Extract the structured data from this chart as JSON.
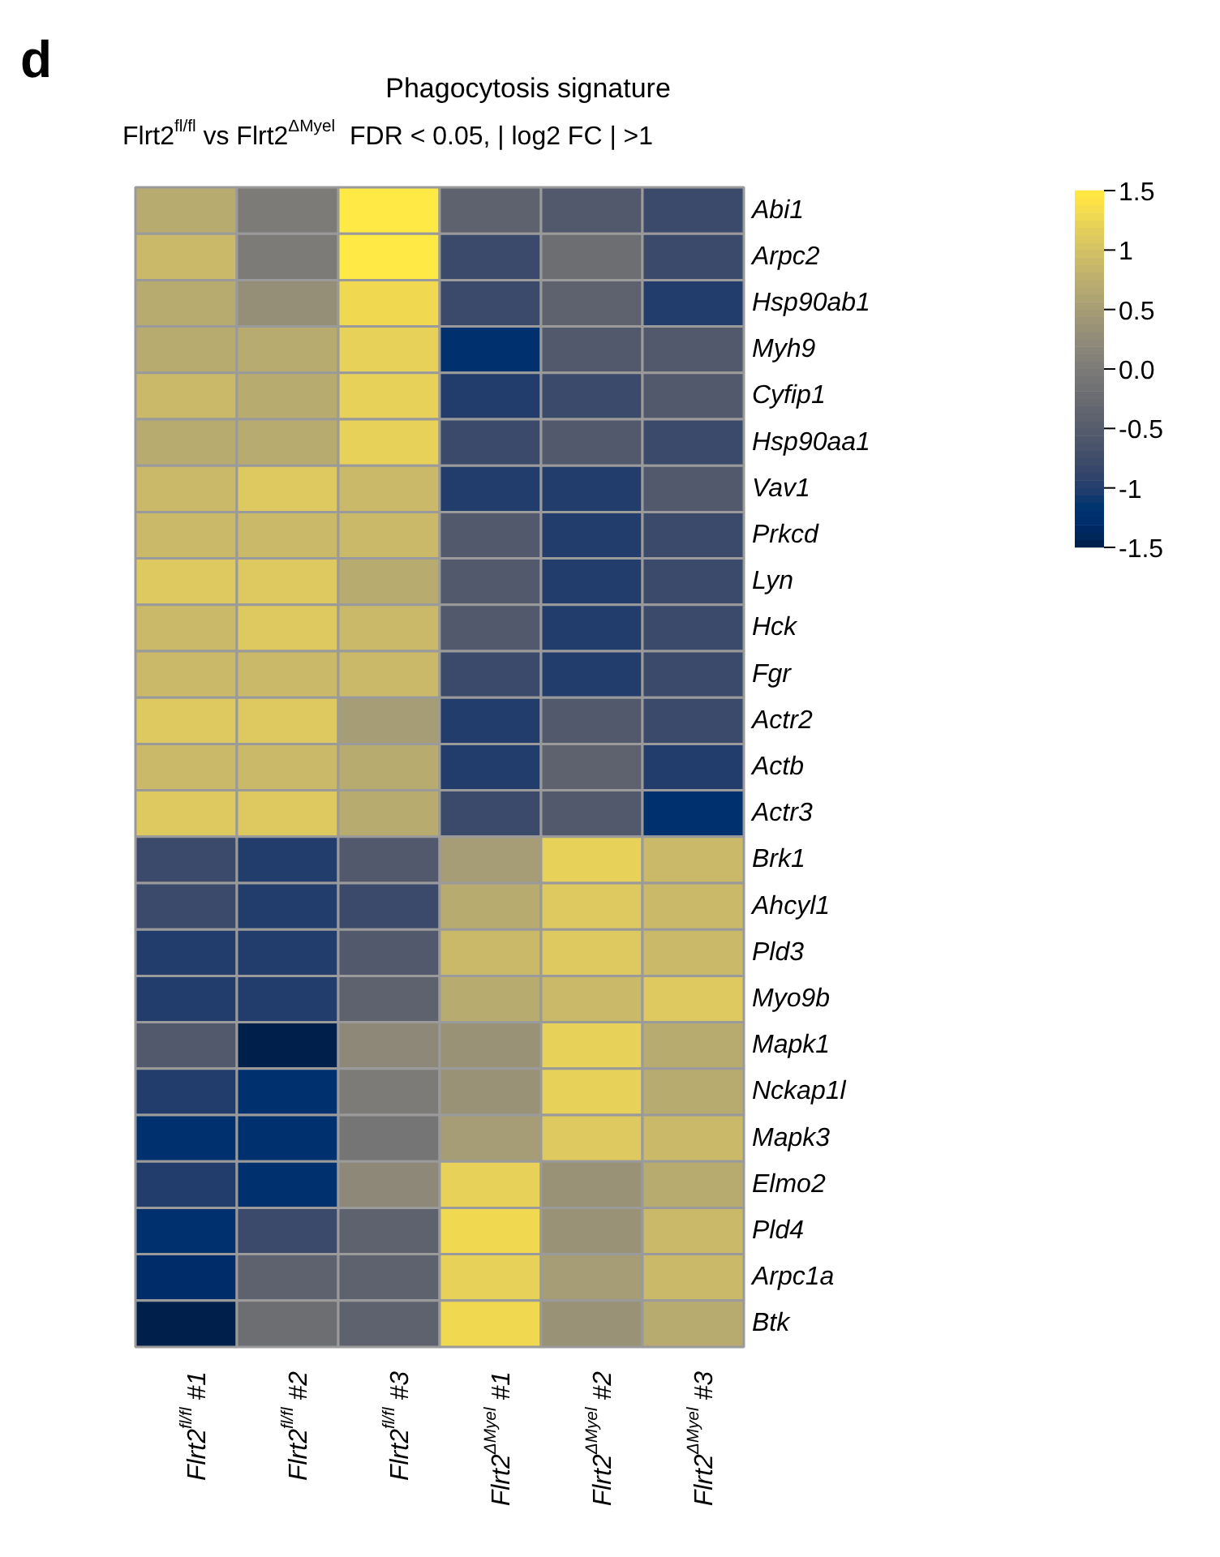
{
  "chart_data": {
    "type": "heatmap",
    "title": "Phagocytosis signature",
    "subtitle": "Flrt2$^{fl/fl}$ vs Flrt2$^{ΔMyel}$  FDR < 0.05, | log2 FC | >1",
    "annotations": [
      "d"
    ],
    "categories": [
      "Flrt2$^{fl/fl}$ #1",
      "Flrt2$^{fl/fl}$ #2",
      "Flrt2$^{fl/fl}$ #3",
      "Flrt2$^{ΔMyel}$ #1",
      "Flrt2$^{ΔMyel}$ #2",
      "Flrt2$^{ΔMyel}$ #3"
    ],
    "y_categories": [
      "Abi1",
      "Arpc2",
      "Hsp90ab1",
      "Myh9",
      "Cyfip1",
      "Hsp90aa1",
      "Vav1",
      "Prkcd",
      "Lyn",
      "Hck",
      "Fgr",
      "Actr2",
      "Actb",
      "Actr3",
      "Brk1",
      "Ahcyl1",
      "Pld3",
      "Myo9b",
      "Mapk1",
      "Nckap1l",
      "Mapk3",
      "Elmo2",
      "Pld4",
      "Arpc1a",
      "Btk"
    ],
    "cells": [
      [
        0.7,
        0,
        1.5,
        -0.4,
        -0.55,
        -0.8
      ],
      [
        0.9,
        0,
        1.5,
        -0.8,
        -0.2,
        -0.8
      ],
      [
        0.7,
        0.3,
        1.3,
        -0.8,
        -0.4,
        -1.0
      ],
      [
        0.7,
        0.7,
        1.2,
        -1.2,
        -0.55,
        -0.55
      ],
      [
        0.9,
        0.7,
        1.2,
        -1.0,
        -0.8,
        -0.55
      ],
      [
        0.7,
        0.7,
        1.2,
        -0.8,
        -0.55,
        -0.8
      ],
      [
        0.9,
        1.1,
        0.9,
        -1.0,
        -1.0,
        -0.55
      ],
      [
        0.9,
        0.9,
        0.9,
        -0.55,
        -1.0,
        -0.8
      ],
      [
        1.1,
        1.1,
        0.7,
        -0.55,
        -1.0,
        -0.8
      ],
      [
        0.9,
        1.1,
        0.9,
        -0.55,
        -1.0,
        -0.8
      ],
      [
        0.9,
        0.9,
        0.9,
        -0.8,
        -1.0,
        -0.8
      ],
      [
        1.1,
        1.1,
        0.5,
        -1.0,
        -0.55,
        -0.8
      ],
      [
        0.9,
        0.9,
        0.7,
        -1.0,
        -0.4,
        -1.0
      ],
      [
        1.1,
        1.1,
        0.7,
        -0.8,
        -0.55,
        -1.2
      ],
      [
        -0.8,
        -1.0,
        -0.55,
        0.5,
        1.2,
        0.9
      ],
      [
        -0.8,
        -1.0,
        -0.8,
        0.7,
        1.1,
        0.9
      ],
      [
        -1.0,
        -1.0,
        -0.55,
        0.9,
        1.1,
        0.9
      ],
      [
        -1.0,
        -1.0,
        -0.4,
        0.7,
        0.9,
        1.1
      ],
      [
        -0.55,
        -1.5,
        0.2,
        0.35,
        1.2,
        0.7
      ],
      [
        -1.0,
        -1.2,
        0,
        0.35,
        1.2,
        0.7
      ],
      [
        -1.2,
        -1.2,
        -0.1,
        0.5,
        1.1,
        0.9
      ],
      [
        -1.0,
        -1.2,
        0.2,
        1.2,
        0.35,
        0.7
      ],
      [
        -1.2,
        -0.8,
        -0.4,
        1.3,
        0.35,
        0.9
      ],
      [
        -1.3,
        -0.4,
        -0.4,
        1.2,
        0.5,
        0.9
      ],
      [
        -1.5,
        -0.2,
        -0.4,
        1.3,
        0.35,
        0.7
      ]
    ],
    "clim": [
      -1.5,
      1.5
    ],
    "cticks": [
      {
        "value": -1.5,
        "label": "-1.5"
      },
      {
        "value": -1,
        "label": "-1"
      },
      {
        "value": -0.5,
        "label": "-0.5"
      },
      {
        "value": 0,
        "label": "0.0"
      },
      {
        "value": 0.5,
        "label": "0.5"
      },
      {
        "value": 1,
        "label": "1"
      },
      {
        "value": 1.5,
        "label": "1.5"
      }
    ]
  }
}
